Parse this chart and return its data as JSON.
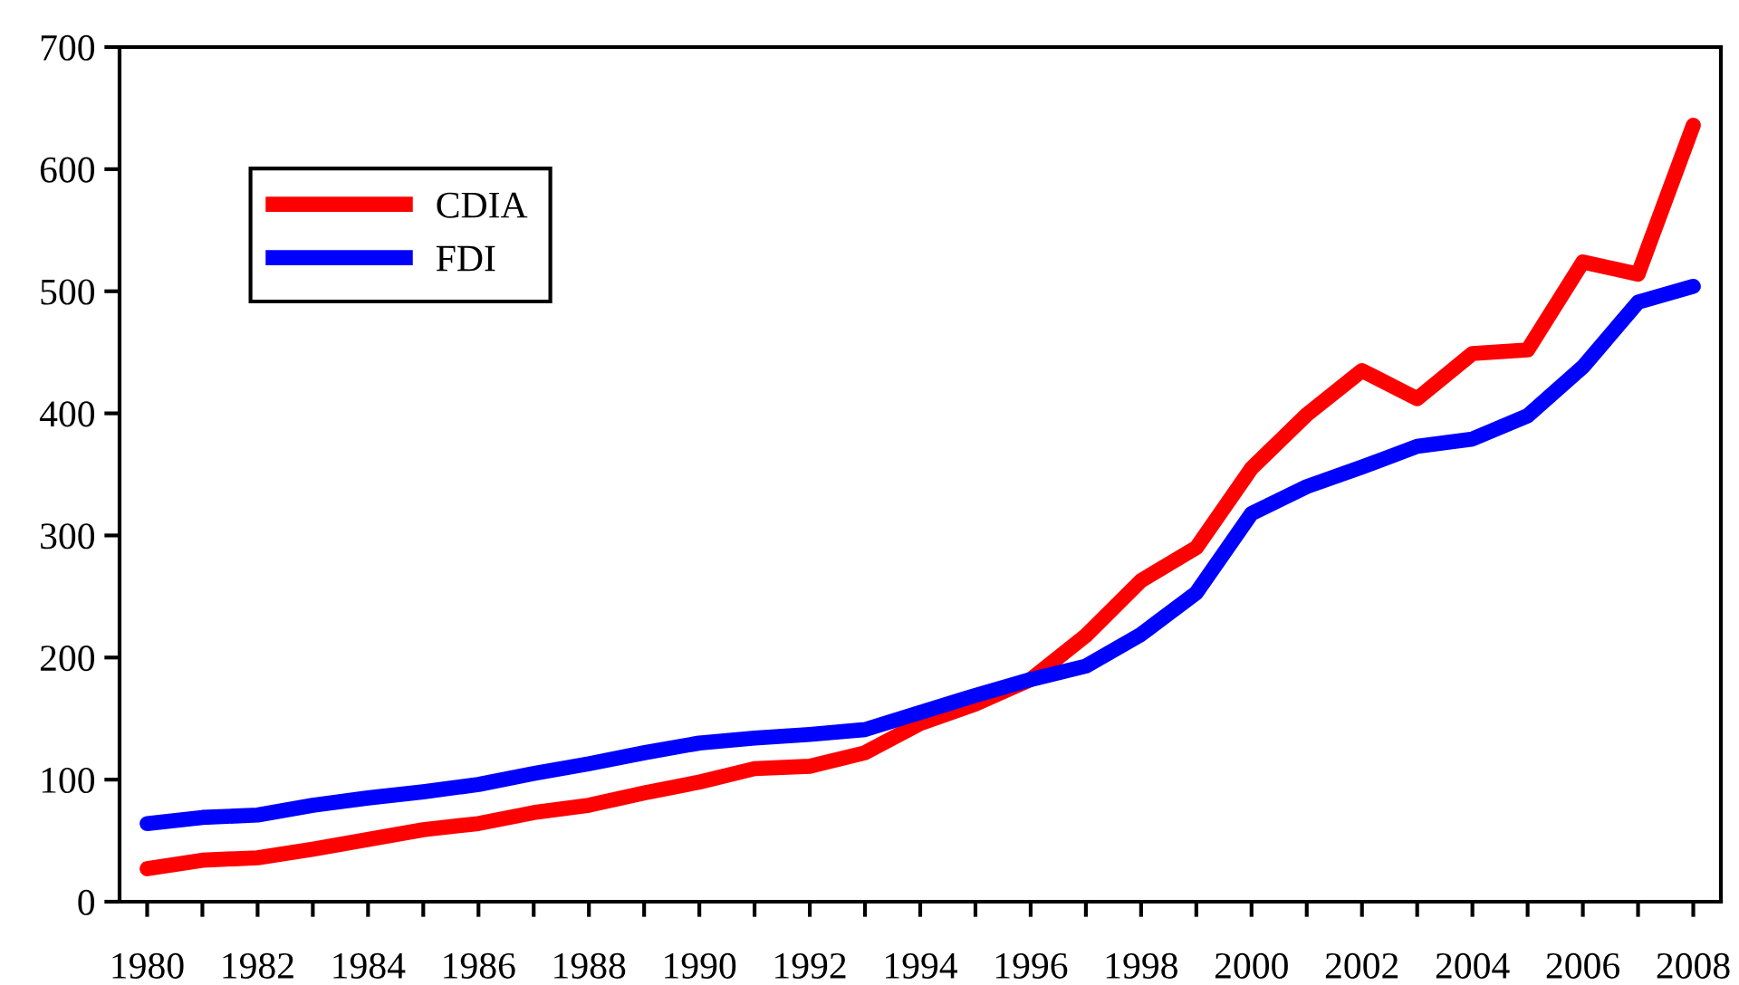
{
  "chart_data": {
    "type": "line",
    "x": [
      1980,
      1981,
      1982,
      1983,
      1984,
      1985,
      1986,
      1987,
      1988,
      1989,
      1990,
      1991,
      1992,
      1993,
      1994,
      1995,
      1996,
      1997,
      1998,
      1999,
      2000,
      2001,
      2002,
      2003,
      2004,
      2005,
      2006,
      2007,
      2008
    ],
    "series": [
      {
        "name": "CDIA",
        "color": "#ff0000",
        "values": [
          27,
          34,
          36,
          43,
          51,
          59,
          64,
          73,
          79,
          89,
          98,
          109,
          111,
          122,
          146,
          162,
          182,
          218,
          263,
          290,
          355,
          399,
          435,
          412,
          449,
          452,
          524,
          514,
          636
        ]
      },
      {
        "name": "FDI",
        "color": "#0000ff",
        "values": [
          64,
          69,
          71,
          79,
          85,
          90,
          96,
          105,
          113,
          122,
          130,
          134,
          137,
          141,
          155,
          169,
          182,
          193,
          219,
          253,
          318,
          340,
          356,
          373,
          379,
          398,
          438,
          491,
          504
        ]
      }
    ],
    "xlim": [
      1979.5,
      2008.5
    ],
    "xticks": [
      1980,
      {
        "value": 1981,
        "label": null
      },
      1982,
      {
        "value": 1983,
        "label": null
      },
      1984,
      {
        "value": 1985,
        "label": null
      },
      1986,
      {
        "value": 1987,
        "label": null
      },
      1988,
      {
        "value": 1989,
        "label": null
      },
      1990,
      {
        "value": 1991,
        "label": null
      },
      1992,
      {
        "value": 1993,
        "label": null
      },
      1994,
      {
        "value": 1995,
        "label": null
      },
      1996,
      {
        "value": 1997,
        "label": null
      },
      1998,
      {
        "value": 1999,
        "label": null
      },
      2000,
      {
        "value": 2001,
        "label": null
      },
      2002,
      {
        "value": 2003,
        "label": null
      },
      2004,
      {
        "value": 2005,
        "label": null
      },
      2006,
      {
        "value": 2007,
        "label": null
      },
      2008
    ],
    "ylim": [
      0,
      700
    ],
    "yticks": [
      0,
      100,
      200,
      300,
      400,
      500,
      600,
      700
    ],
    "grid": false,
    "legend": "top left",
    "marker": "none",
    "line_style": "solid"
  }
}
